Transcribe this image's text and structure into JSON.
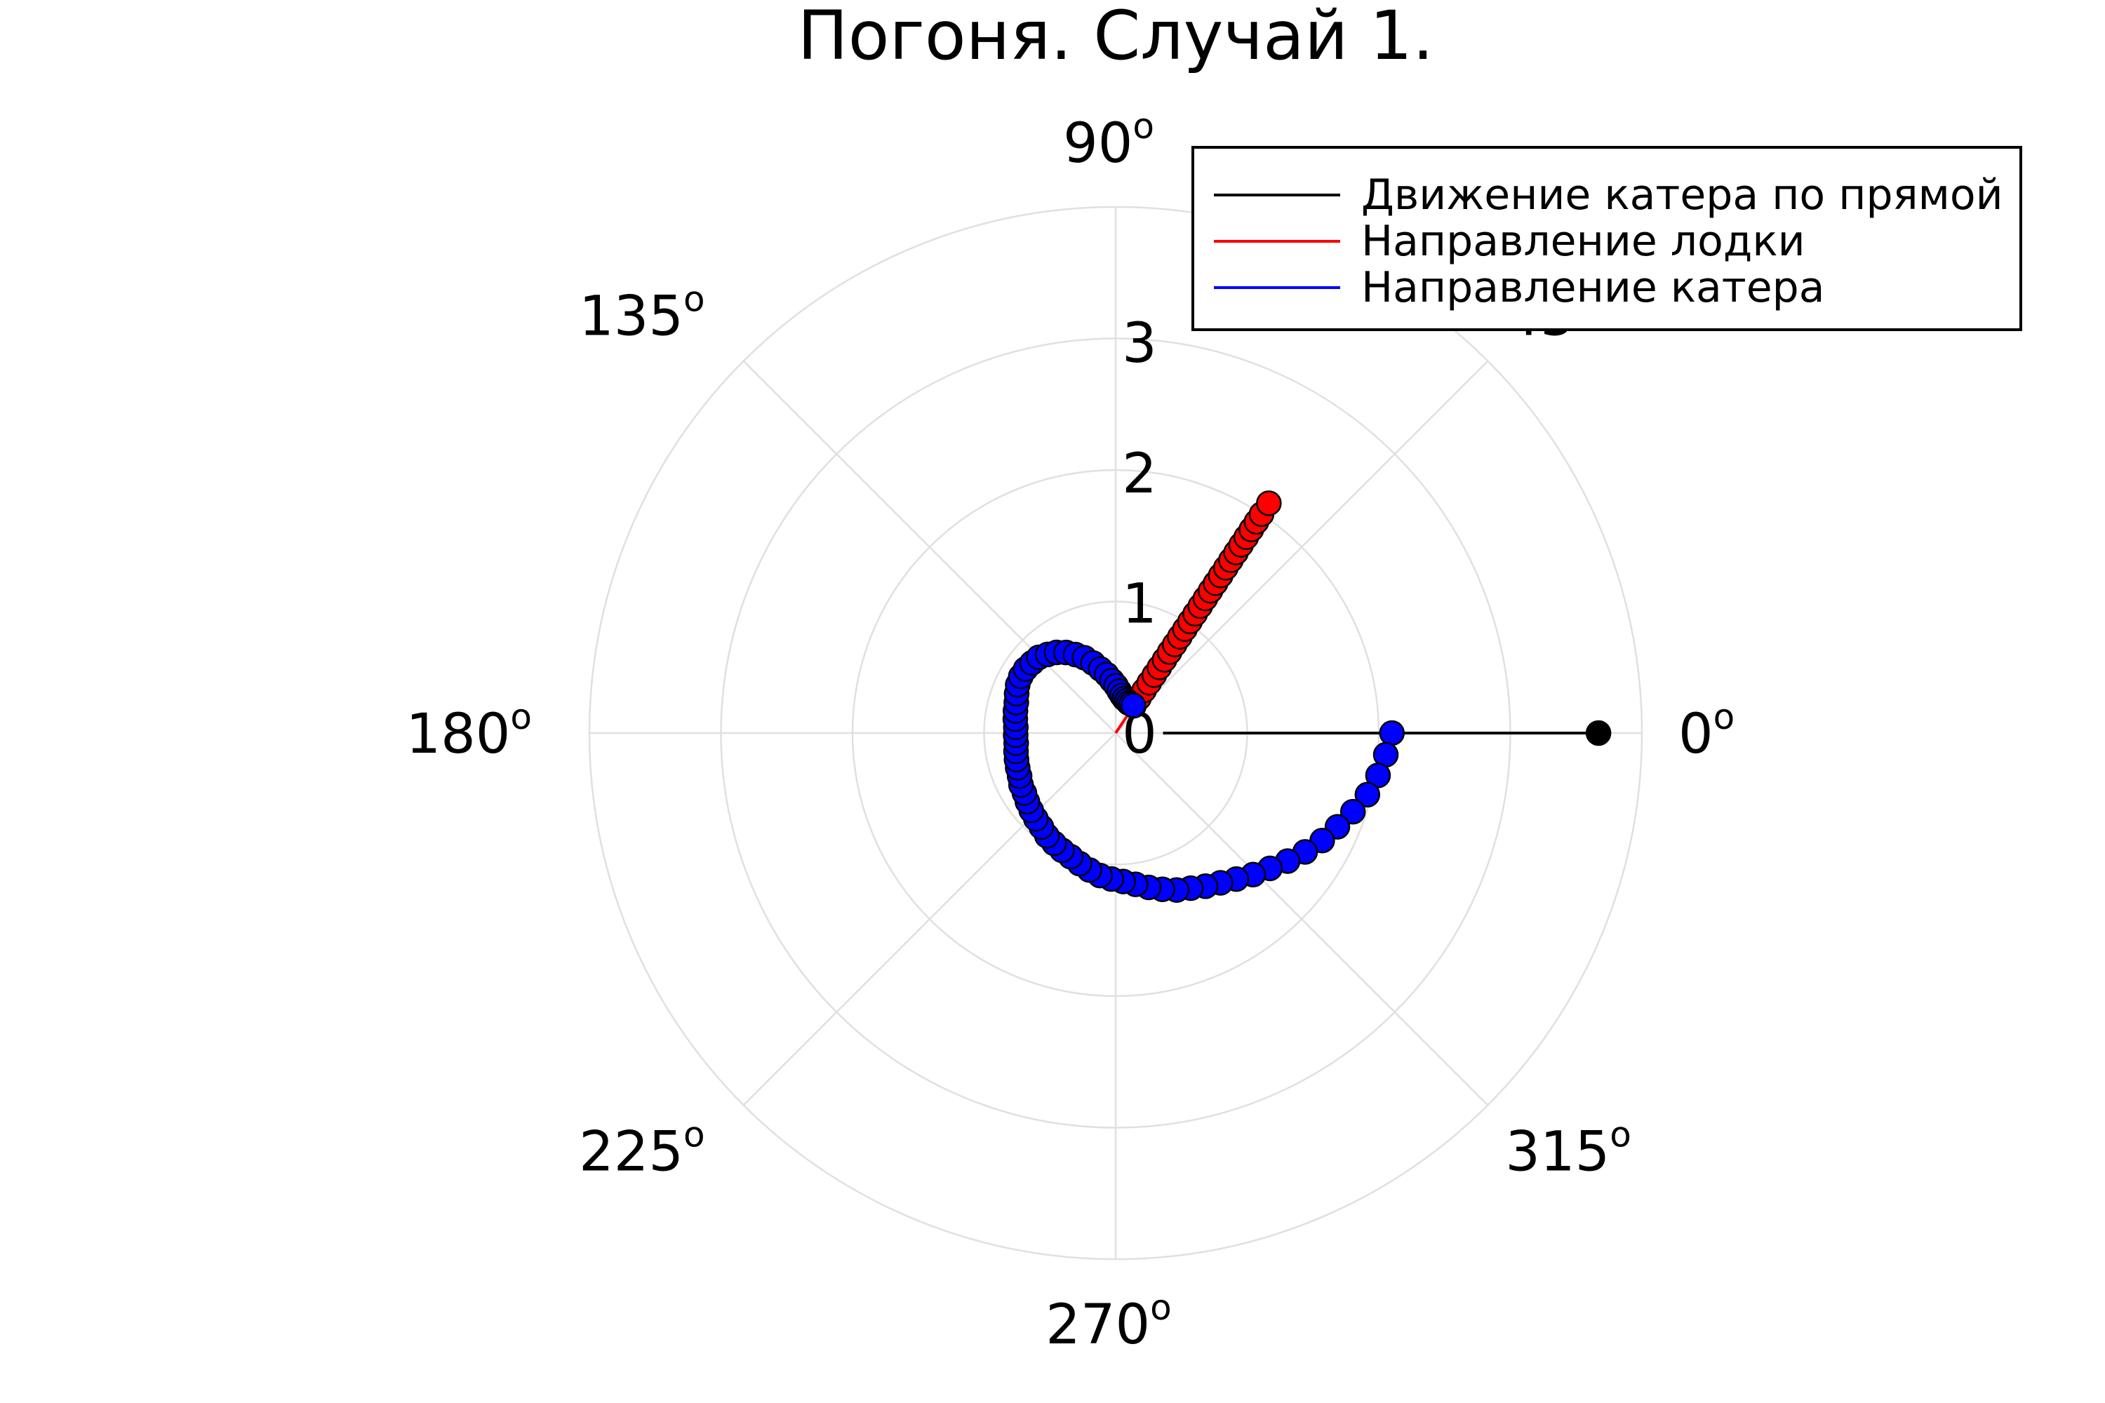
{
  "chart_data": {
    "type": "scatter",
    "projection": "polar",
    "title": "Погоня. Случай 1.",
    "angle_ticks": [
      {
        "deg": 0,
        "label": "0"
      },
      {
        "deg": 45,
        "label": "45"
      },
      {
        "deg": 90,
        "label": "90"
      },
      {
        "deg": 135,
        "label": "135"
      },
      {
        "deg": 180,
        "label": "180"
      },
      {
        "deg": 225,
        "label": "225"
      },
      {
        "deg": 270,
        "label": "270"
      },
      {
        "deg": 315,
        "label": "315"
      }
    ],
    "angle_unit_symbol": "o",
    "radial_ticks": [
      "0",
      "1",
      "2",
      "3"
    ],
    "rlim": [
      0,
      4
    ],
    "grid": true,
    "legend_position": "top-right",
    "legend": [
      {
        "label": "Движение катера по прямой",
        "color": "#000000"
      },
      {
        "label": "Направление лодки",
        "color": "#ff0000"
      },
      {
        "label": "Направление катера",
        "color": "#0000ff"
      }
    ],
    "series": [
      {
        "name": "Движение катера по прямой",
        "color": "#000000",
        "line": true,
        "points": [
          [
            0,
            3.67
          ],
          [
            0,
            3.3
          ],
          [
            0,
            2.9
          ],
          [
            0,
            2.5
          ],
          [
            0,
            2.1
          ],
          [
            0,
            1.7
          ],
          [
            0,
            1.3
          ],
          [
            0,
            0.9
          ],
          [
            0,
            0.5
          ],
          [
            0,
            0.36
          ]
        ],
        "marker_points": [
          [
            0,
            3.67
          ]
        ]
      },
      {
        "name": "Направление лодки",
        "color": "#ff0000",
        "line": true,
        "points": [
          [
            0.983,
            0.0
          ],
          [
            0.983,
            2.1
          ]
        ],
        "marker_points": [
          [
            0.983,
            0.25
          ],
          [
            0.983,
            0.32
          ],
          [
            0.983,
            0.39
          ],
          [
            0.983,
            0.46
          ],
          [
            0.983,
            0.53
          ],
          [
            0.983,
            0.6
          ],
          [
            0.983,
            0.67
          ],
          [
            0.983,
            0.74
          ],
          [
            0.983,
            0.81
          ],
          [
            0.983,
            0.88
          ],
          [
            0.983,
            0.95
          ],
          [
            0.983,
            1.02
          ],
          [
            0.983,
            1.09
          ],
          [
            0.983,
            1.16
          ],
          [
            0.983,
            1.23
          ],
          [
            0.983,
            1.3
          ],
          [
            0.983,
            1.37
          ],
          [
            0.983,
            1.44
          ],
          [
            0.983,
            1.51
          ],
          [
            0.983,
            1.58
          ],
          [
            0.983,
            1.65
          ],
          [
            0.983,
            1.72
          ],
          [
            0.983,
            1.79
          ],
          [
            0.983,
            1.86
          ],
          [
            0.983,
            1.93
          ],
          [
            0.983,
            2.0
          ],
          [
            0.983,
            2.1
          ]
        ]
      },
      {
        "name": "Направление катера",
        "color": "#0000ff",
        "line": false,
        "marker_points": [
          [
            0.0,
            2.1
          ],
          [
            -0.08,
            2.06
          ],
          [
            -0.16,
            2.02
          ],
          [
            -0.24,
            1.97
          ],
          [
            -0.32,
            1.9
          ],
          [
            -0.4,
            1.83
          ],
          [
            -0.48,
            1.77
          ],
          [
            -0.56,
            1.7
          ],
          [
            -0.64,
            1.63
          ],
          [
            -0.72,
            1.56
          ],
          [
            -0.8,
            1.5
          ],
          [
            -0.88,
            1.44
          ],
          [
            -0.96,
            1.39
          ],
          [
            -1.04,
            1.35
          ],
          [
            -1.12,
            1.31
          ],
          [
            -1.2,
            1.28
          ],
          [
            -1.28,
            1.24
          ],
          [
            -1.36,
            1.2
          ],
          [
            -1.44,
            1.16
          ],
          [
            -1.52,
            1.13
          ],
          [
            -1.6,
            1.11
          ],
          [
            -1.68,
            1.09
          ],
          [
            -1.76,
            1.06
          ],
          [
            -1.84,
            1.03
          ],
          [
            -1.92,
            1.0
          ],
          [
            -2.0,
            0.98
          ],
          [
            -2.08,
            0.96
          ],
          [
            -2.16,
            0.94
          ],
          [
            -2.24,
            0.91
          ],
          [
            -2.32,
            0.89
          ],
          [
            -2.4,
            0.87
          ],
          [
            -2.48,
            0.85
          ],
          [
            -2.56,
            0.83
          ],
          [
            -2.64,
            0.82
          ],
          [
            -2.72,
            0.8
          ],
          [
            -2.8,
            0.79
          ],
          [
            -2.88,
            0.78
          ],
          [
            -2.96,
            0.77
          ],
          [
            -3.04,
            0.76
          ],
          [
            -3.12,
            0.76
          ],
          [
            -3.2,
            0.76
          ],
          [
            -3.28,
            0.77
          ],
          [
            -3.36,
            0.78
          ],
          [
            -3.44,
            0.79
          ],
          [
            -3.52,
            0.81
          ],
          [
            -3.6,
            0.83
          ],
          [
            -3.68,
            0.84
          ],
          [
            -3.76,
            0.84
          ],
          [
            -3.84,
            0.83
          ],
          [
            -3.92,
            0.82
          ],
          [
            -4.0,
            0.79
          ],
          [
            -4.08,
            0.76
          ],
          [
            -4.16,
            0.72
          ],
          [
            -4.24,
            0.67
          ],
          [
            -4.32,
            0.62
          ],
          [
            -4.4,
            0.56
          ],
          [
            -4.48,
            0.5
          ],
          [
            -4.56,
            0.45
          ],
          [
            -4.64,
            0.4
          ],
          [
            -4.72,
            0.36
          ],
          [
            -4.8,
            0.32
          ],
          [
            -4.88,
            0.29
          ],
          [
            -4.96,
            0.27
          ],
          [
            -5.04,
            0.26
          ],
          [
            -5.12,
            0.25
          ],
          [
            -5.2,
            0.25
          ],
          [
            -5.28,
            0.25
          ]
        ]
      }
    ]
  }
}
